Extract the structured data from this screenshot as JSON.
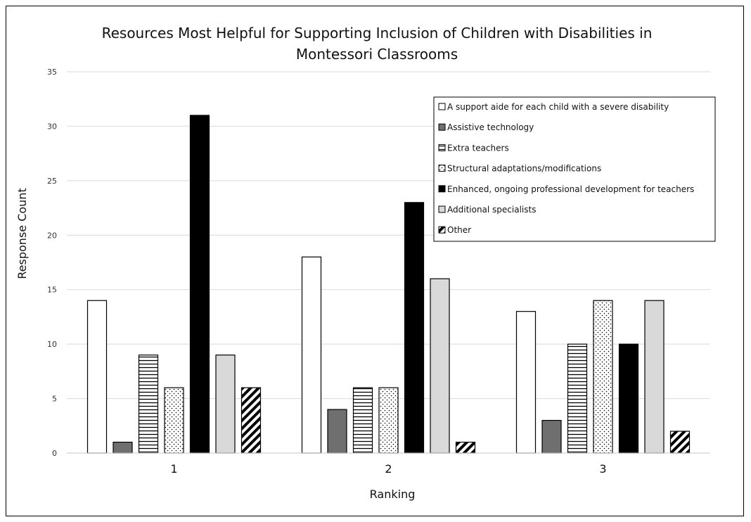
{
  "chart_data": {
    "type": "bar",
    "title": "Resources Most Helpful for Supporting Inclusion of Children with Disabilities in Montessori Classrooms",
    "title_lines": [
      "Resources Most Helpful for Supporting Inclusion of Children with Disabilities in",
      "Montessori Classrooms"
    ],
    "xlabel": "Ranking",
    "ylabel": "Response Count",
    "categories": [
      "1",
      "2",
      "3"
    ],
    "ylim": [
      0,
      35
    ],
    "yticks": [
      0,
      5,
      10,
      15,
      20,
      25,
      30,
      35
    ],
    "grid": true,
    "legend_position": "top-right",
    "series": [
      {
        "name": "A support aide for each child with a severe disability",
        "values": [
          14,
          18,
          13
        ],
        "pattern": "white"
      },
      {
        "name": "Assistive technology",
        "values": [
          1,
          4,
          3
        ],
        "pattern": "gray"
      },
      {
        "name": "Extra teachers",
        "values": [
          9,
          6,
          10
        ],
        "pattern": "hstripes"
      },
      {
        "name": "Structural adaptations/modifications",
        "values": [
          6,
          6,
          14
        ],
        "pattern": "dots"
      },
      {
        "name": "Enhanced, ongoing professional development for teachers",
        "values": [
          31,
          23,
          10
        ],
        "pattern": "black"
      },
      {
        "name": "Additional specialists",
        "values": [
          9,
          16,
          14
        ],
        "pattern": "lightgray"
      },
      {
        "name": "Other",
        "values": [
          6,
          1,
          2
        ],
        "pattern": "diagonal"
      }
    ],
    "colors": {
      "white": "#ffffff",
      "gray": "#6f6f6f",
      "black": "#000000",
      "lightgray": "#d9d9d9",
      "grid": "#d9d9d9",
      "outline": "#000000"
    }
  }
}
